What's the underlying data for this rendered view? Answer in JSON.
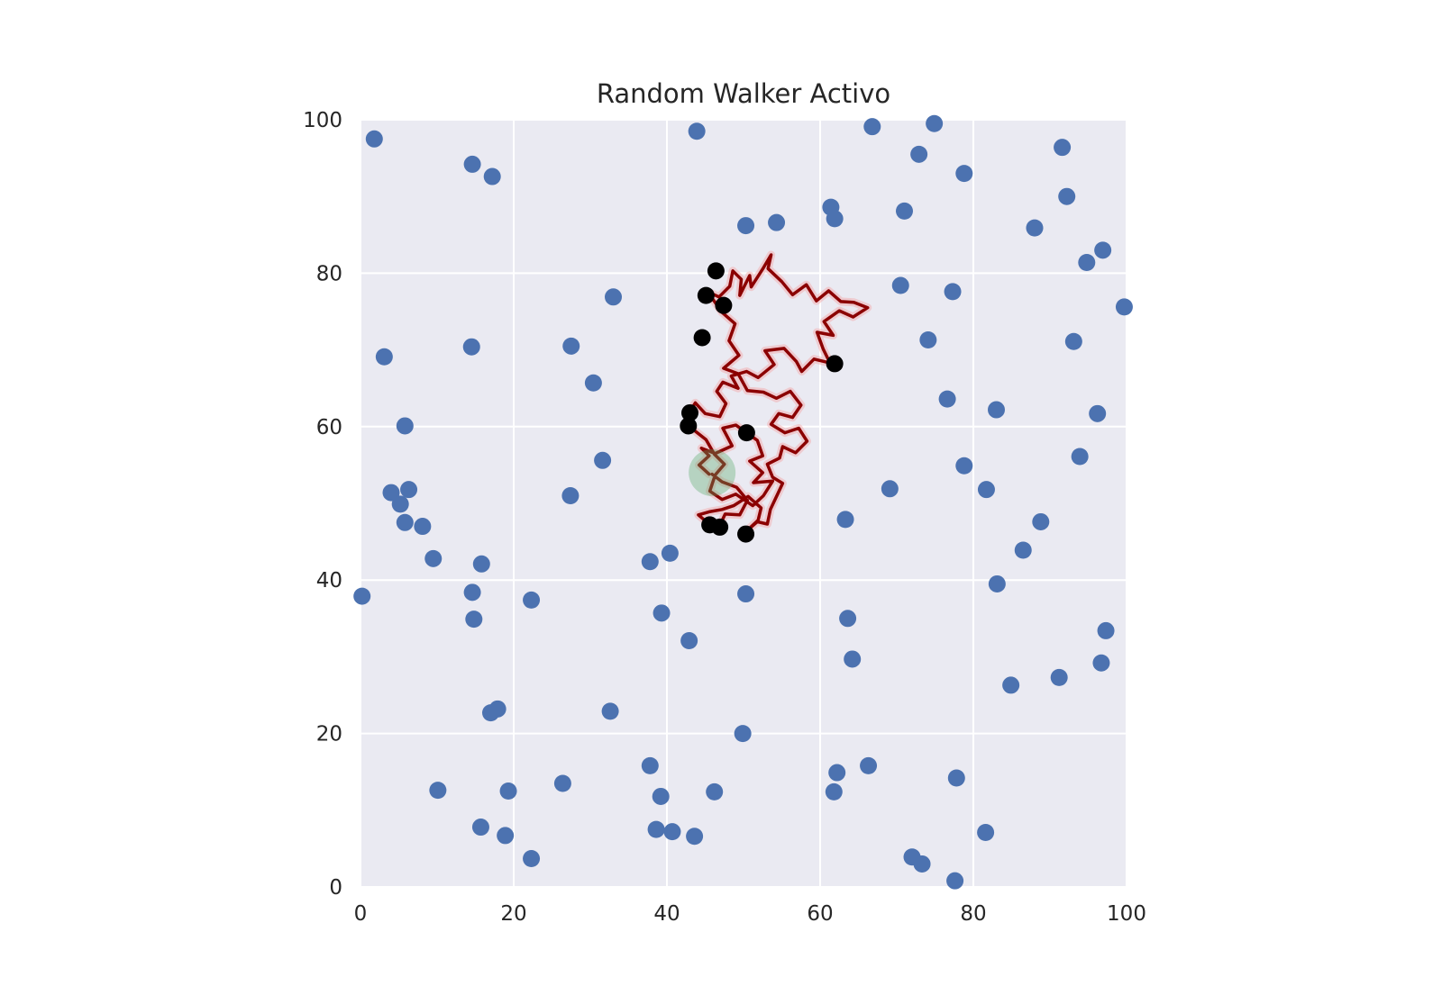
{
  "chart_data": {
    "type": "scatter",
    "title": "Random Walker Activo",
    "xlabel": "",
    "ylabel": "",
    "xlim": [
      0,
      100
    ],
    "ylim": [
      0,
      100
    ],
    "x_ticks": [
      "0",
      "20",
      "40",
      "60",
      "80",
      "100"
    ],
    "y_ticks": [
      "0",
      "20",
      "40",
      "60",
      "80",
      "100"
    ],
    "grid": true,
    "legend": "none",
    "colors": {
      "background": "#eaeaf2",
      "grid": "#ffffff",
      "points": "#4c72b0",
      "captured": "#000000",
      "path": "#8b0000",
      "walker": "#55a868"
    },
    "series": [
      {
        "kind": "free-points",
        "points": [
          [
            1.8,
            97.5
          ],
          [
            14.6,
            94.2
          ],
          [
            17.2,
            92.6
          ],
          [
            3.1,
            69.1
          ],
          [
            14.5,
            70.4
          ],
          [
            5.8,
            60.1
          ],
          [
            4,
            51.4
          ],
          [
            6.3,
            51.8
          ],
          [
            5.2,
            49.9
          ],
          [
            5.8,
            47.5
          ],
          [
            8.1,
            47
          ],
          [
            9.5,
            42.8
          ],
          [
            15.8,
            42.1
          ],
          [
            0.2,
            37.9
          ],
          [
            14.6,
            38.4
          ],
          [
            14.8,
            34.9
          ],
          [
            22.3,
            37.4
          ],
          [
            27.5,
            70.5
          ],
          [
            30.4,
            65.7
          ],
          [
            33,
            76.9
          ],
          [
            31.6,
            55.6
          ],
          [
            27.4,
            51
          ],
          [
            37.8,
            42.4
          ],
          [
            40.4,
            43.5
          ],
          [
            39.3,
            35.7
          ],
          [
            42.9,
            32.1
          ],
          [
            43.9,
            98.5
          ],
          [
            50.3,
            86.2
          ],
          [
            54.3,
            86.6
          ],
          [
            61.4,
            88.6
          ],
          [
            61.9,
            87.1
          ],
          [
            66.8,
            99.1
          ],
          [
            72.9,
            95.5
          ],
          [
            74.9,
            99.5
          ],
          [
            78.8,
            93
          ],
          [
            71,
            88.1
          ],
          [
            70.5,
            78.4
          ],
          [
            77.3,
            77.6
          ],
          [
            74.1,
            71.3
          ],
          [
            76.6,
            63.6
          ],
          [
            83,
            62.2
          ],
          [
            78.8,
            54.9
          ],
          [
            81.7,
            51.8
          ],
          [
            69.1,
            51.9
          ],
          [
            63.3,
            47.9
          ],
          [
            88.8,
            47.6
          ],
          [
            86.5,
            43.9
          ],
          [
            83.1,
            39.5
          ],
          [
            88,
            85.9
          ],
          [
            91.6,
            96.4
          ],
          [
            92.2,
            90
          ],
          [
            96.9,
            83
          ],
          [
            94.8,
            81.4
          ],
          [
            99.7,
            75.6
          ],
          [
            93.1,
            71.1
          ],
          [
            96.2,
            61.7
          ],
          [
            93.9,
            56.1
          ],
          [
            97.3,
            33.4
          ],
          [
            96.7,
            29.2
          ],
          [
            91.2,
            27.3
          ],
          [
            84.9,
            26.3
          ],
          [
            81.6,
            7.1
          ],
          [
            77.8,
            14.2
          ],
          [
            77.6,
            0.8
          ],
          [
            73.3,
            3
          ],
          [
            72,
            3.9
          ],
          [
            66.3,
            15.8
          ],
          [
            62.2,
            14.9
          ],
          [
            61.8,
            12.4
          ],
          [
            63.6,
            35
          ],
          [
            64.2,
            29.7
          ],
          [
            50.3,
            38.2
          ],
          [
            49.9,
            20
          ],
          [
            46.2,
            12.4
          ],
          [
            43.6,
            6.6
          ],
          [
            40.7,
            7.2
          ],
          [
            38.6,
            7.5
          ],
          [
            39.2,
            11.8
          ],
          [
            37.8,
            15.8
          ],
          [
            32.6,
            22.9
          ],
          [
            26.4,
            13.5
          ],
          [
            22.3,
            3.7
          ],
          [
            19.3,
            12.5
          ],
          [
            18.9,
            6.7
          ],
          [
            15.7,
            7.8
          ],
          [
            17.9,
            23.2
          ],
          [
            17,
            22.7
          ],
          [
            10.1,
            12.6
          ]
        ]
      },
      {
        "kind": "captured-points",
        "points": [
          [
            46.4,
            80.3
          ],
          [
            45.1,
            77.1
          ],
          [
            47.4,
            75.8
          ],
          [
            44.6,
            71.6
          ],
          [
            61.9,
            68.2
          ],
          [
            43,
            61.8
          ],
          [
            42.8,
            60.1
          ],
          [
            50.4,
            59.2
          ],
          [
            45.6,
            47.2
          ],
          [
            46.9,
            46.9
          ],
          [
            50.3,
            46
          ]
        ]
      },
      {
        "kind": "walker-path",
        "points": [
          [
            45.5,
            53.8
          ],
          [
            44.2,
            55
          ],
          [
            45.5,
            56.2
          ],
          [
            44.5,
            57.2
          ],
          [
            46.3,
            56.5
          ],
          [
            48.5,
            57.5
          ],
          [
            47.3,
            59.8
          ],
          [
            49,
            60.2
          ],
          [
            51.8,
            58.2
          ],
          [
            52.5,
            56.2
          ],
          [
            50.8,
            55.5
          ],
          [
            52.5,
            54
          ],
          [
            51.3,
            52.7
          ],
          [
            53.8,
            52.9
          ],
          [
            52.6,
            51
          ],
          [
            51.2,
            49.7
          ],
          [
            49,
            51.2
          ],
          [
            47.2,
            50.5
          ],
          [
            45.6,
            51.6
          ],
          [
            46.3,
            53.7
          ],
          [
            47.5,
            55.1
          ],
          [
            46.2,
            56.4
          ],
          [
            45.1,
            58.3
          ],
          [
            43.2,
            59.8
          ],
          [
            42.6,
            61.4
          ],
          [
            43.7,
            63.1
          ],
          [
            45,
            61.7
          ],
          [
            46.9,
            61.3
          ],
          [
            47.7,
            63
          ],
          [
            46.5,
            64.6
          ],
          [
            47.3,
            65.8
          ],
          [
            49.3,
            65
          ],
          [
            48.4,
            66.6
          ],
          [
            50.4,
            67.2
          ],
          [
            51.9,
            66.4
          ],
          [
            54,
            68.1
          ],
          [
            52.8,
            69.9
          ],
          [
            55.3,
            70.2
          ],
          [
            56.9,
            68.5
          ],
          [
            57.6,
            67.2
          ],
          [
            59.2,
            68.8
          ],
          [
            61.3,
            68.3
          ],
          [
            60.4,
            70.1
          ],
          [
            59.6,
            72.3
          ],
          [
            61.7,
            71.9
          ],
          [
            60.5,
            73.7
          ],
          [
            62.5,
            75.1
          ],
          [
            64.3,
            74.3
          ],
          [
            66.2,
            75.5
          ],
          [
            64.4,
            76.2
          ],
          [
            62.7,
            76.3
          ],
          [
            61.1,
            77.7
          ],
          [
            59.5,
            76.4
          ],
          [
            58.2,
            78.5
          ],
          [
            56.4,
            77.2
          ],
          [
            55,
            78.9
          ],
          [
            53.2,
            80.6
          ],
          [
            53.6,
            82.4
          ],
          [
            52.6,
            80.7
          ],
          [
            51,
            78.2
          ],
          [
            50.8,
            79.7
          ],
          [
            49.5,
            77.1
          ],
          [
            49.7,
            79.2
          ],
          [
            48.6,
            80.3
          ],
          [
            48.2,
            78.3
          ],
          [
            46.8,
            76.9
          ],
          [
            45.3,
            77.6
          ],
          [
            47.2,
            74.9
          ],
          [
            48.9,
            73.4
          ],
          [
            48.1,
            71.2
          ],
          [
            49.4,
            69.3
          ],
          [
            47.4,
            67.6
          ],
          [
            49.3,
            66.9
          ],
          [
            50.5,
            64.7
          ],
          [
            52.6,
            64.5
          ],
          [
            54.3,
            63.7
          ],
          [
            56.1,
            64.6
          ],
          [
            57.5,
            62.8
          ],
          [
            56.4,
            61.2
          ],
          [
            54.6,
            61.7
          ],
          [
            53.6,
            60.3
          ],
          [
            55.4,
            59.2
          ],
          [
            57.2,
            59.8
          ],
          [
            58.3,
            58.1
          ],
          [
            56.8,
            56.6
          ],
          [
            55.1,
            57.4
          ],
          [
            54.7,
            55.9
          ],
          [
            53.1,
            55.1
          ],
          [
            53.8,
            53.4
          ],
          [
            55.1,
            52.6
          ],
          [
            54.4,
            51.1
          ],
          [
            53.5,
            49.2
          ],
          [
            53.1,
            47.3
          ],
          [
            51.8,
            47.6
          ],
          [
            50.3,
            46.3
          ],
          [
            51.9,
            47.8
          ],
          [
            52.3,
            49.4
          ],
          [
            50.6,
            50.9
          ],
          [
            48.7,
            49.7
          ],
          [
            47.2,
            49.2
          ],
          [
            45.5,
            48.9
          ],
          [
            44.1,
            48.5
          ],
          [
            45.5,
            47.3
          ],
          [
            46.8,
            46.9
          ],
          [
            47.6,
            48.6
          ],
          [
            49.5,
            48.5
          ],
          [
            50.5,
            50.4
          ],
          [
            49.1,
            52.1
          ],
          [
            47.2,
            52.8
          ],
          [
            45.9,
            53.8
          ]
        ]
      },
      {
        "kind": "active-walker",
        "points": [
          [
            45.9,
            54
          ]
        ]
      }
    ]
  }
}
